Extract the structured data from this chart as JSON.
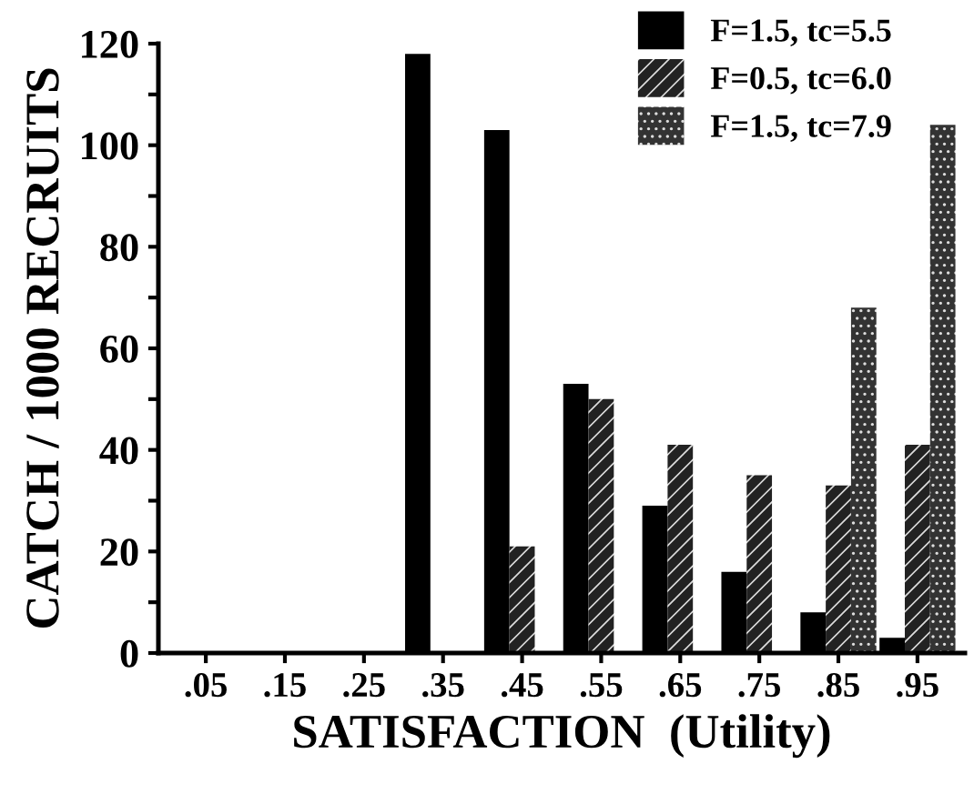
{
  "chart_data": {
    "type": "bar",
    "xlabel": "SATISFACTION  (Utility)",
    "ylabel": "CATCH / 1000 RECRUITS",
    "categories": [
      ".05",
      ".15",
      ".25",
      ".35",
      ".45",
      ".55",
      ".65",
      ".75",
      ".85",
      ".95"
    ],
    "series": [
      {
        "name": "F=1.5, tc=5.5",
        "color": "#000000",
        "values": [
          0,
          0,
          0,
          118,
          103,
          53,
          29,
          16,
          8,
          3
        ]
      },
      {
        "name": "F=0.5, tc=6.0",
        "color": "#222222",
        "values": [
          0,
          0,
          0,
          0,
          21,
          50,
          41,
          35,
          33,
          41
        ]
      },
      {
        "name": "F=1.5, tc=7.9",
        "color": "#333333",
        "values": [
          0,
          0,
          0,
          0,
          0,
          0,
          0,
          0,
          68,
          104
        ]
      }
    ],
    "ylim": [
      0,
      120
    ],
    "yticks": [
      0,
      {
        "value": 10,
        "label": null
      },
      20,
      {
        "value": 30,
        "label": null
      },
      40,
      {
        "value": 50,
        "label": null
      },
      60,
      {
        "value": 70,
        "label": null
      },
      80,
      {
        "value": 90,
        "label": null
      },
      100,
      {
        "value": 110,
        "label": null
      },
      120
    ],
    "grid": false,
    "legend": "top right"
  }
}
